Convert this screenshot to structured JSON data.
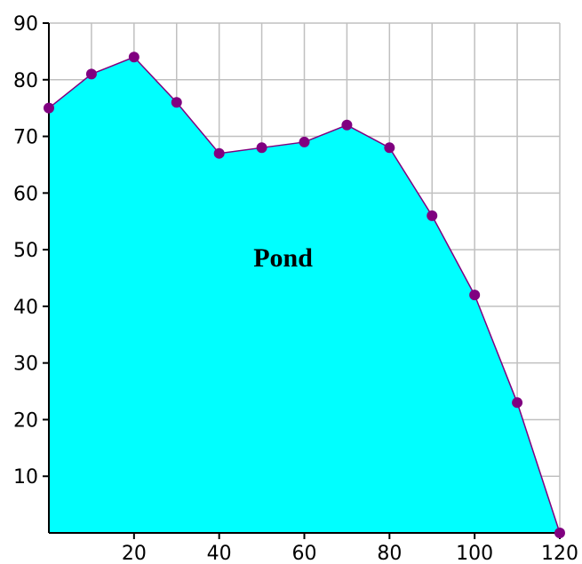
{
  "chart_data": {
    "type": "area",
    "title": "",
    "xlabel": "",
    "ylabel": "",
    "xlim": [
      0,
      120
    ],
    "ylim": [
      0,
      90
    ],
    "x_ticks": [
      20,
      40,
      60,
      80,
      100,
      120
    ],
    "y_ticks": [
      10,
      20,
      30,
      40,
      50,
      60,
      70,
      80,
      90
    ],
    "grid": true,
    "grid_step_x": 10,
    "grid_step_y": 10,
    "series": [
      {
        "x": [
          0,
          10,
          20,
          30,
          40,
          50,
          60,
          70,
          80,
          90,
          100,
          110,
          120
        ],
        "values": [
          75,
          81,
          84,
          76,
          67,
          68,
          69,
          72,
          68,
          56,
          42,
          23,
          0
        ]
      }
    ],
    "annotation": "Pond",
    "annotation_at": {
      "x": 55,
      "y": 47
    },
    "colors": {
      "fill": "#00FFFF",
      "line": "#800080",
      "marker": "#800080",
      "grid": "#C0C0C0",
      "axis": "#000000"
    }
  }
}
